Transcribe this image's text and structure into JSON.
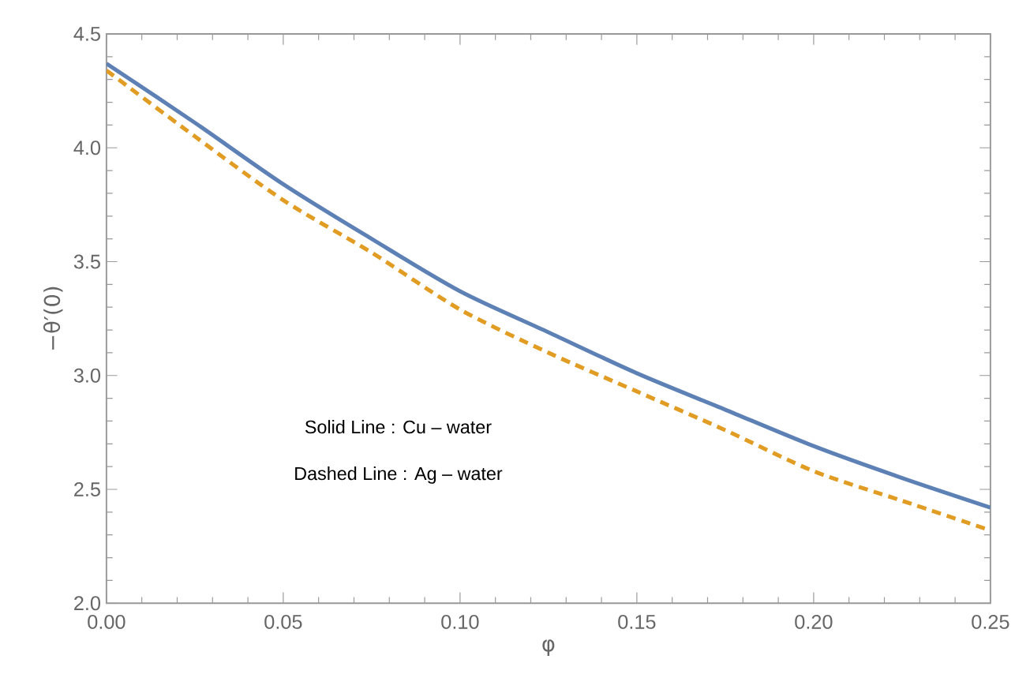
{
  "chart_data": {
    "type": "line",
    "xlabel": "φ",
    "ylabel": "−θ′(0)",
    "x": [
      0,
      0.025,
      0.05,
      0.075,
      0.1,
      0.125,
      0.15,
      0.175,
      0.2,
      0.225,
      0.25
    ],
    "series": [
      {
        "color": "#5e81b5",
        "line_style": "solid",
        "values": [
          4.37,
          4.11,
          3.84,
          3.6,
          3.37,
          3.19,
          3.01,
          2.85,
          2.69,
          2.55,
          2.42
        ]
      },
      {
        "color": "#e19c24",
        "line_style": "dashed",
        "values": [
          4.34,
          4.05,
          3.77,
          3.54,
          3.29,
          3.1,
          2.93,
          2.76,
          2.58,
          2.45,
          2.32
        ]
      }
    ],
    "xlim": [
      0,
      0.25
    ],
    "ylim": [
      2.0,
      4.5
    ],
    "xticks": [
      {
        "value": 0,
        "label": "0.00"
      },
      0.05,
      {
        "value": 0.1,
        "label": "0.10"
      },
      0.15,
      {
        "value": 0.2,
        "label": "0.20"
      },
      0.25
    ],
    "yticks": [
      {
        "value": 2,
        "label": "2.0"
      },
      2.5,
      {
        "value": 3,
        "label": "3.0"
      },
      3.5,
      {
        "value": 4,
        "label": "4.0"
      },
      4.5
    ],
    "annotations": [
      "Solid  Line  : Cu – water",
      "Dashed  Line  : Ag – water"
    ],
    "grid": false,
    "marker": "none"
  }
}
